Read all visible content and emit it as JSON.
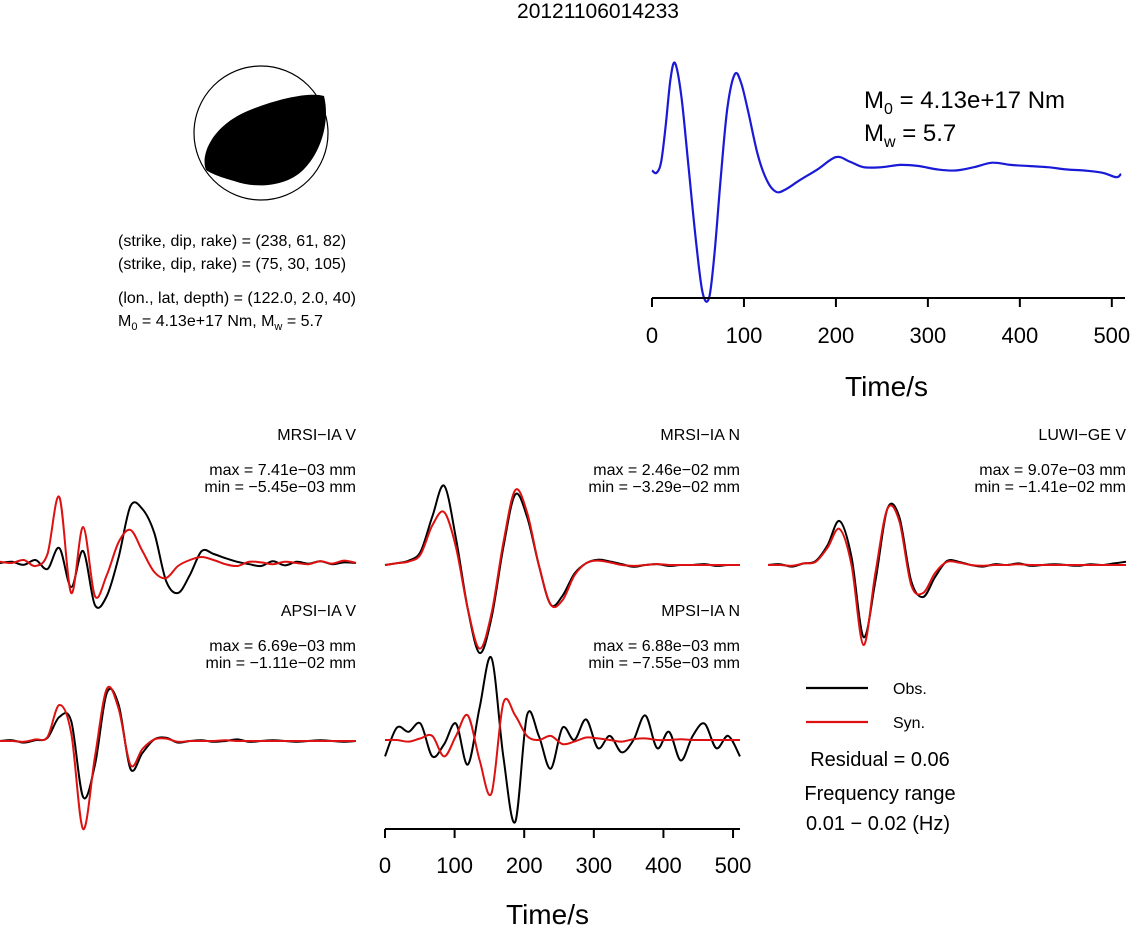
{
  "title": "20121106014233",
  "mechanism": {
    "line1": "(strike, dip, rake) = (238, 61, 82)",
    "line2": "(strike, dip, rake) = (75, 30, 105)",
    "location": "(lon., lat, depth) = (122.0, 2.0, 40)",
    "moment_m0": "M",
    "moment_m0_sub": "0",
    "moment_m0_val": " = 4.13e+17 Nm, M",
    "moment_mw_sub": "w",
    "moment_mw_val": " = 5.7"
  },
  "stf_label": {
    "m0_base": "M",
    "m0_sub": "0",
    "m0_value": " = 4.13e+17 Nm",
    "mw_base": "M",
    "mw_sub": "w",
    "mw_value": " = 5.7"
  },
  "legend": {
    "obs_label": "Obs.",
    "syn_label": "Syn.",
    "obs_color": "#000000",
    "syn_color": "#dd1111"
  },
  "residual": "Residual = 0.06",
  "freq_line1": "Frequency range",
  "freq_line2": "0.01 − 0.02 (Hz)",
  "chart_data": [
    {
      "type": "line",
      "id": "source-time-function",
      "xlabel": "Time/s",
      "xlim": [
        0,
        510
      ],
      "xticks": [
        0,
        100,
        200,
        300,
        400,
        500
      ],
      "color": "#1a1ad6",
      "series": [
        {
          "x": [
            0,
            5,
            10,
            15,
            20,
            25,
            32,
            40,
            48,
            55,
            62,
            68,
            75,
            82,
            90,
            97,
            105,
            115,
            125,
            135,
            145,
            160,
            180,
            200,
            215,
            230,
            250,
            270,
            290,
            310,
            330,
            350,
            370,
            390,
            410,
            430,
            450,
            470,
            490,
            505,
            510
          ],
          "y": [
            0.04,
            0.02,
            0.12,
            0.45,
            0.85,
            1.0,
            0.7,
            0.05,
            -0.6,
            -1.05,
            -1.1,
            -0.7,
            0.0,
            0.6,
            0.9,
            0.82,
            0.55,
            0.18,
            -0.05,
            -0.15,
            -0.13,
            -0.05,
            0.05,
            0.16,
            0.12,
            0.07,
            0.07,
            0.09,
            0.08,
            0.05,
            0.04,
            0.07,
            0.11,
            0.09,
            0.08,
            0.07,
            0.05,
            0.04,
            0.02,
            -0.02,
            0.01
          ]
        }
      ]
    },
    {
      "type": "line",
      "station": "MRSI−IA V",
      "max": "max = 7.41e−03 mm",
      "min": "min = −5.45e−03 mm",
      "obs": [
        0.0,
        0.02,
        -0.03,
        0.05,
        -0.1,
        0.25,
        -0.4,
        0.2,
        -0.7,
        -0.55,
        0.1,
        0.95,
        0.9,
        0.5,
        -0.3,
        -0.5,
        -0.2,
        0.2,
        0.15,
        0.08,
        0.02,
        -0.02,
        -0.05,
        0.03,
        -0.04,
        0.02,
        -0.01,
        0.03,
        -0.02,
        0.01,
        0.0
      ],
      "syn": [
        0.02,
        0.0,
        0.05,
        -0.05,
        0.15,
        1.1,
        -0.5,
        0.6,
        -0.55,
        -0.2,
        0.35,
        0.55,
        0.2,
        -0.15,
        -0.25,
        -0.05,
        0.05,
        0.1,
        0.05,
        -0.02,
        -0.05,
        0.02,
        0.01,
        -0.02,
        0.02,
        0.0,
        -0.02,
        0.03,
        -0.01,
        0.04,
        0.0
      ]
    },
    {
      "type": "line",
      "station": "MRSI−IA N",
      "max": "max = 2.46e−02 mm",
      "min": "min = −3.29e−02 mm",
      "obs": [
        0.0,
        0.02,
        0.05,
        0.15,
        0.55,
        0.9,
        0.3,
        -0.5,
        -1.0,
        -0.6,
        0.2,
        0.8,
        0.55,
        0.0,
        -0.45,
        -0.35,
        -0.1,
        0.02,
        0.06,
        0.04,
        0.01,
        -0.02,
        0.0,
        0.01,
        -0.01,
        0.0,
        0.0,
        0.01,
        -0.01,
        0.0,
        0.0
      ],
      "syn": [
        0.0,
        0.02,
        0.04,
        0.12,
        0.45,
        0.6,
        0.2,
        -0.5,
        -0.95,
        -0.55,
        0.25,
        0.85,
        0.6,
        0.0,
        -0.45,
        -0.4,
        -0.12,
        0.02,
        0.05,
        0.03,
        0.0,
        -0.01,
        0.0,
        0.01,
        0.0,
        0.0,
        0.0,
        0.0,
        0.0,
        0.0,
        0.0
      ]
    },
    {
      "type": "line",
      "station": "LUWI−GE V",
      "max": "max = 9.07e−03 mm",
      "min": "min = −1.41e−02 mm",
      "obs": [
        0.0,
        0.01,
        -0.02,
        0.02,
        0.05,
        0.25,
        0.55,
        0.1,
        -0.9,
        -0.2,
        0.7,
        0.6,
        -0.2,
        -0.4,
        -0.15,
        0.05,
        0.04,
        0.0,
        -0.02,
        0.01,
        0.0,
        0.02,
        -0.01,
        0.0,
        0.01,
        0.0,
        -0.01,
        0.01,
        0.0,
        0.02,
        0.04
      ],
      "syn": [
        0.0,
        0.0,
        -0.01,
        0.02,
        0.04,
        0.22,
        0.45,
        0.0,
        -1.0,
        -0.1,
        0.7,
        0.55,
        -0.25,
        -0.35,
        -0.1,
        0.04,
        0.03,
        0.0,
        -0.01,
        0.0,
        0.0,
        0.01,
        0.0,
        0.0,
        0.0,
        0.0,
        0.0,
        0.0,
        0.0,
        0.0,
        0.0
      ]
    },
    {
      "type": "line",
      "station": "APSI−IA V",
      "max": "max = 6.69e−03 mm",
      "min": "min = −1.11e−02 mm",
      "obs": [
        0.0,
        0.01,
        -0.02,
        0.01,
        0.04,
        0.3,
        0.25,
        -0.7,
        -0.3,
        0.6,
        0.45,
        -0.35,
        -0.15,
        0.02,
        0.04,
        -0.02,
        0.0,
        0.01,
        -0.01,
        0.0,
        0.02,
        -0.01,
        0.0,
        0.01,
        0.0,
        -0.01,
        0.0,
        0.01,
        0.0,
        -0.01,
        0.0
      ],
      "syn": [
        0.0,
        0.0,
        -0.01,
        0.02,
        0.05,
        0.45,
        0.1,
        -1.1,
        -0.2,
        0.65,
        0.4,
        -0.3,
        -0.1,
        0.02,
        0.03,
        -0.01,
        0.0,
        0.0,
        0.0,
        0.01,
        0.0,
        0.0,
        0.0,
        0.0,
        0.0,
        0.0,
        0.0,
        0.0,
        0.0,
        0.0,
        0.0
      ]
    },
    {
      "type": "line",
      "station": "MPSI−IA N",
      "max": "max = 6.88e−03 mm",
      "min": "min = −7.55e−03 mm",
      "xlabel": "Time/s",
      "xlim": [
        0,
        510
      ],
      "xticks": [
        0,
        100,
        200,
        300,
        400,
        500
      ],
      "obs": [
        -0.2,
        0.15,
        0.1,
        0.2,
        -0.2,
        -0.05,
        0.2,
        -0.3,
        0.4,
        1.0,
        -0.2,
        -1.0,
        0.3,
        0.05,
        -0.35,
        0.15,
        0.0,
        0.25,
        -0.1,
        0.05,
        -0.15,
        0.0,
        0.3,
        -0.1,
        0.1,
        -0.25,
        0.05,
        0.2,
        -0.1,
        0.05,
        -0.2
      ],
      "syn": [
        0.0,
        0.0,
        -0.02,
        0.02,
        0.05,
        -0.2,
        0.05,
        0.3,
        -0.25,
        -0.65,
        0.45,
        0.3,
        0.05,
        0.0,
        0.05,
        -0.05,
        -0.02,
        0.03,
        0.02,
        0.0,
        -0.02,
        0.01,
        0.02,
        0.0,
        0.0,
        0.01,
        0.0,
        0.0,
        0.0,
        0.0,
        0.0
      ]
    }
  ]
}
